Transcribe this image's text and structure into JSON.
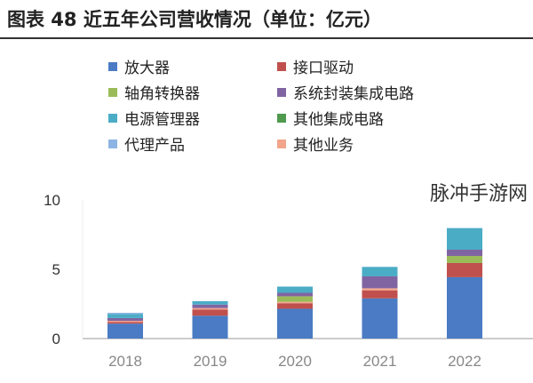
{
  "title": "图表 48 近五年公司营收情况（单位：亿元）",
  "watermark": "脉冲手游网",
  "chart_data": {
    "type": "bar",
    "stacked": true,
    "categories": [
      "2018",
      "2019",
      "2020",
      "2021",
      "2022"
    ],
    "ylim": [
      0,
      10
    ],
    "yticks": [
      0,
      5,
      10
    ],
    "grid": false,
    "legend_position": "top",
    "series": [
      {
        "name": "放大器",
        "color": "#4a7bc4",
        "values": [
          1.08,
          1.65,
          2.15,
          2.9,
          4.43
        ]
      },
      {
        "name": "接口驱动",
        "color": "#c0504d",
        "values": [
          0.12,
          0.45,
          0.4,
          0.58,
          1.02
        ]
      },
      {
        "name": "其他业务",
        "color": "#f2a58a",
        "values": [
          0.08,
          0.1,
          0.1,
          0.15,
          0
        ]
      },
      {
        "name": "轴角转换器",
        "color": "#9bbb59",
        "values": [
          0,
          0,
          0.4,
          0,
          0.51
        ]
      },
      {
        "name": "系统封装集成电路",
        "color": "#8064a2",
        "values": [
          0.2,
          0.25,
          0.25,
          0.86,
          0.45
        ]
      },
      {
        "name": "电源管理器",
        "color": "#4bacc6",
        "values": [
          0.3,
          0.25,
          0.45,
          0.68,
          1.56
        ]
      },
      {
        "name": "其他集成电路",
        "color": "#4f9a4f",
        "values": [
          0,
          0,
          0,
          0,
          0
        ]
      },
      {
        "name": "代理产品",
        "color": "#8db4e2",
        "values": [
          0.08,
          0,
          0,
          0,
          0
        ]
      }
    ],
    "legend_order": [
      "放大器",
      "接口驱动",
      "轴角转换器",
      "系统封装集成电路",
      "电源管理器",
      "其他集成电路",
      "代理产品",
      "其他业务"
    ]
  }
}
